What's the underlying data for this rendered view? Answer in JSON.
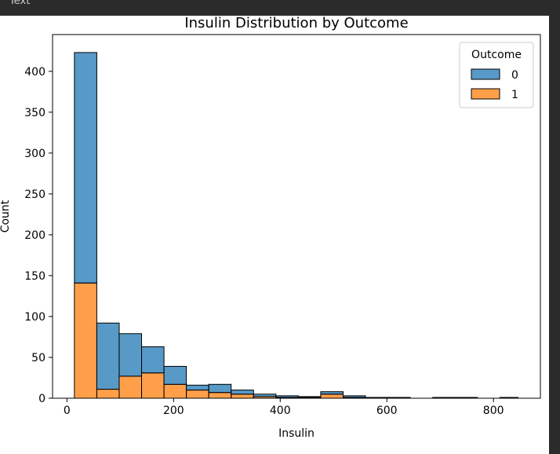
{
  "topbar": {
    "label": "Text"
  },
  "chart_data": {
    "type": "histogram",
    "stacked": true,
    "title": "Insulin Distribution by Outcome",
    "xlabel": "Insulin",
    "ylabel": "Count",
    "xlim": [
      -27,
      888
    ],
    "ylim": [
      0,
      445
    ],
    "xticks": [
      0,
      200,
      400,
      600,
      800
    ],
    "yticks": [
      0,
      50,
      100,
      150,
      200,
      250,
      300,
      350,
      400
    ],
    "bin_edges": [
      14,
      56,
      98,
      140,
      182,
      224,
      266,
      308,
      350,
      392,
      434,
      476,
      518,
      560,
      602,
      644,
      686,
      728,
      770,
      812,
      846
    ],
    "legend": {
      "title": "Outcome",
      "position": "top-right"
    },
    "series": [
      {
        "name": "0",
        "color": "#1f77b4",
        "values": [
          282,
          81,
          52,
          32,
          22,
          6,
          10,
          5,
          3,
          2,
          1,
          3,
          2,
          1,
          1,
          0,
          1,
          1,
          0,
          1
        ]
      },
      {
        "name": "1",
        "color": "#ff7f0e",
        "values": [
          141,
          11,
          27,
          31,
          17,
          10,
          7,
          5,
          2,
          1,
          1,
          5,
          1,
          0,
          0,
          0,
          0,
          0,
          0,
          0
        ]
      }
    ],
    "grid": false
  }
}
